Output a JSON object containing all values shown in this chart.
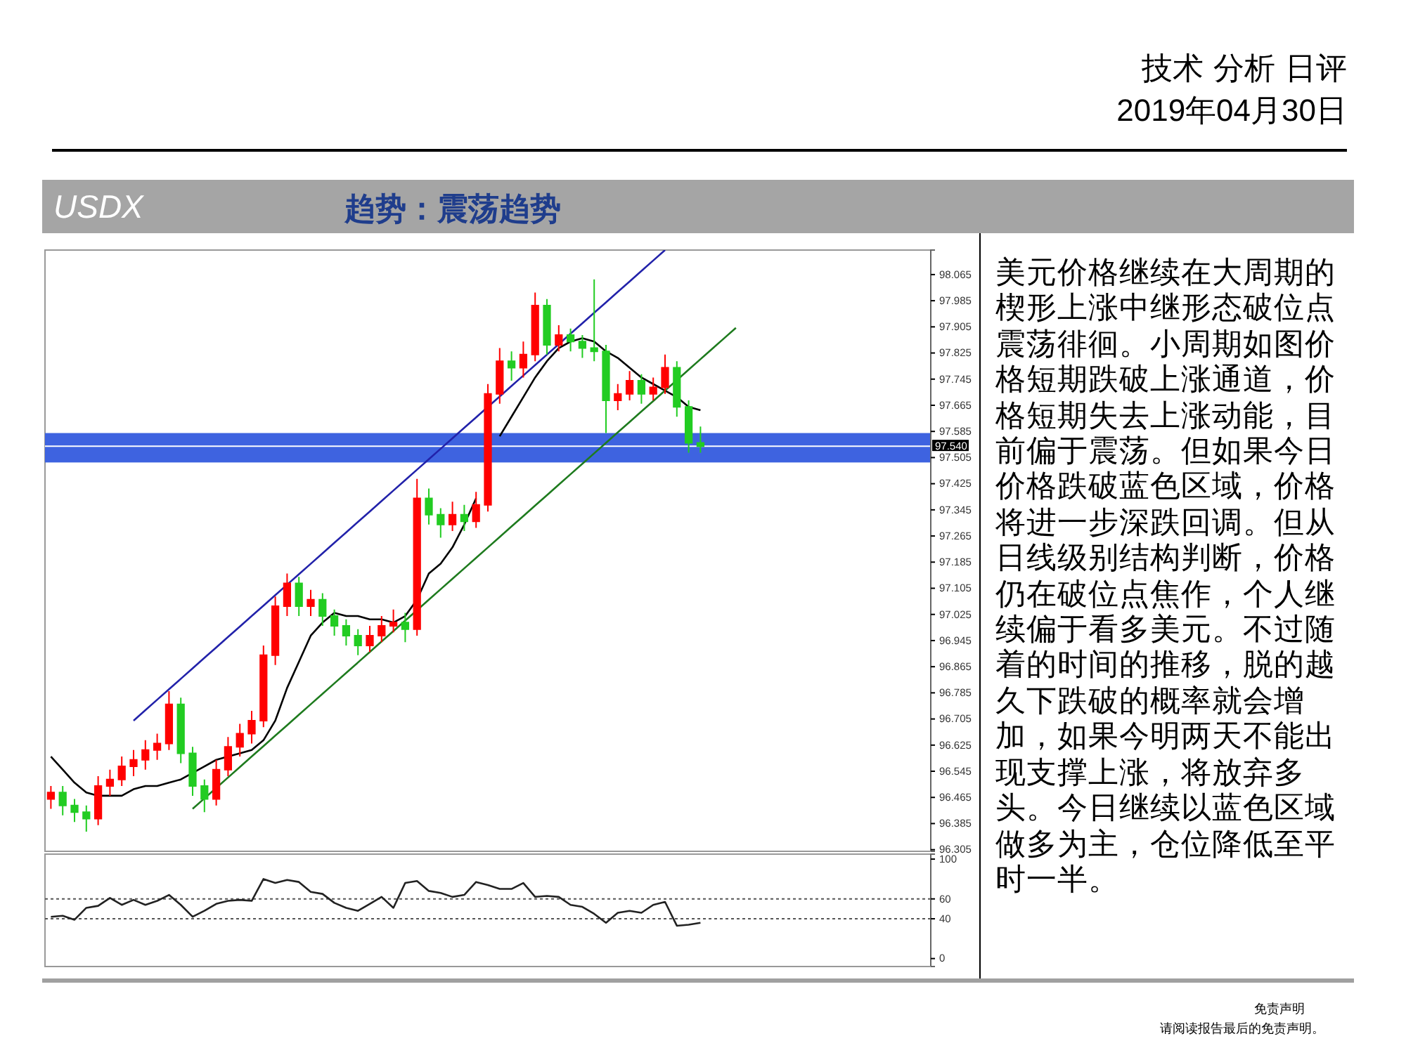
{
  "chart_data": [
    {
      "type": "candlestick",
      "title": "USDX",
      "subtitle": "趋势：震荡趋势",
      "annotations": [
        "技术 分析 日评",
        "2019年04月30日",
        "美元价格继续在大周期的楔形上涨中继形态破位点震荡徘徊。小周期如图价格短期跌破上涨通道，价格短期失去上涨动能，目前偏于震荡。但如果今日价格跌破蓝色区域，价格将进一步深跌回调。但从日线级别结构判断，价格仍在破位点焦作，个人继续偏于看多美元。不过随着的时间的推移，脱的越久下跌破的概率就会增加，如果今明两天不能出现支撑上涨，将放弃多头。今日继续以蓝色区域做多为主，仓位降低至平时一半。",
        "免责声明",
        "请阅读报告最后的免责声明。"
      ],
      "categories": [
        null,
        null,
        null,
        null,
        null,
        null,
        null,
        null,
        null,
        null,
        null,
        null,
        null,
        null,
        null,
        null,
        null,
        null,
        null,
        null,
        null,
        null,
        null,
        null,
        null,
        null,
        null,
        null,
        null,
        null,
        null,
        null,
        null,
        null,
        null,
        null,
        null,
        null,
        null,
        null,
        null,
        null,
        null,
        null,
        null,
        null,
        null,
        null,
        null,
        null,
        null,
        null,
        null,
        null,
        null,
        null,
        null,
        null,
        null,
        null,
        null,
        null,
        null,
        null,
        null,
        null,
        null,
        null,
        null,
        null,
        null,
        null,
        null,
        null,
        null
      ],
      "ohlc": [
        [
          96.46,
          96.5,
          96.43,
          96.48
        ],
        [
          96.48,
          96.5,
          96.41,
          96.44
        ],
        [
          96.44,
          96.46,
          96.39,
          96.42
        ],
        [
          96.42,
          96.44,
          96.36,
          96.4
        ],
        [
          96.4,
          96.53,
          96.38,
          96.5
        ],
        [
          96.5,
          96.55,
          96.47,
          96.52
        ],
        [
          96.52,
          96.59,
          96.5,
          96.56
        ],
        [
          96.56,
          96.61,
          96.53,
          96.58
        ],
        [
          96.58,
          96.64,
          96.55,
          96.61
        ],
        [
          96.61,
          96.66,
          96.58,
          96.63
        ],
        [
          96.63,
          96.79,
          96.61,
          96.75
        ],
        [
          96.75,
          96.77,
          96.57,
          96.6
        ],
        [
          96.6,
          96.62,
          96.47,
          96.5
        ],
        [
          96.5,
          96.52,
          96.42,
          96.46
        ],
        [
          96.46,
          96.58,
          96.44,
          96.55
        ],
        [
          96.55,
          96.65,
          96.53,
          96.62
        ],
        [
          96.62,
          96.69,
          96.59,
          96.66
        ],
        [
          96.66,
          96.73,
          96.63,
          96.7
        ],
        [
          96.7,
          96.93,
          96.68,
          96.9
        ],
        [
          96.9,
          97.08,
          96.87,
          97.05
        ],
        [
          97.05,
          97.15,
          97.02,
          97.12
        ],
        [
          97.12,
          97.14,
          97.02,
          97.05
        ],
        [
          97.05,
          97.1,
          97.02,
          97.07
        ],
        [
          97.07,
          97.09,
          96.99,
          97.02
        ],
        [
          97.02,
          97.04,
          96.96,
          96.99
        ],
        [
          96.99,
          97.01,
          96.93,
          96.96
        ],
        [
          96.96,
          96.98,
          96.9,
          96.93
        ],
        [
          96.93,
          96.99,
          96.91,
          96.96
        ],
        [
          96.96,
          97.02,
          96.94,
          96.99
        ],
        [
          96.99,
          97.04,
          96.97,
          97.0
        ],
        [
          97.0,
          97.03,
          96.94,
          96.98
        ],
        [
          96.98,
          97.44,
          96.96,
          97.38
        ],
        [
          97.38,
          97.41,
          97.3,
          97.33
        ],
        [
          97.33,
          97.35,
          97.26,
          97.3
        ],
        [
          97.3,
          97.37,
          97.28,
          97.33
        ],
        [
          97.33,
          97.36,
          97.28,
          97.31
        ],
        [
          97.31,
          97.4,
          97.29,
          97.36
        ],
        [
          97.36,
          97.73,
          97.34,
          97.7
        ],
        [
          97.7,
          97.84,
          97.67,
          97.8
        ],
        [
          97.8,
          97.83,
          97.74,
          97.78
        ],
        [
          97.78,
          97.86,
          97.75,
          97.82
        ],
        [
          97.82,
          98.01,
          97.8,
          97.97
        ],
        [
          97.97,
          97.99,
          97.82,
          97.85
        ],
        [
          97.85,
          97.91,
          97.83,
          97.88
        ],
        [
          97.88,
          97.9,
          97.83,
          97.86
        ],
        [
          97.86,
          97.88,
          97.81,
          97.84
        ],
        [
          97.84,
          98.05,
          97.8,
          97.83
        ],
        [
          97.83,
          97.85,
          97.58,
          97.68
        ],
        [
          97.68,
          97.73,
          97.65,
          97.7
        ],
        [
          97.7,
          97.77,
          97.68,
          97.74
        ],
        [
          97.74,
          97.76,
          97.67,
          97.7
        ],
        [
          97.7,
          97.75,
          97.68,
          97.72
        ],
        [
          97.72,
          97.82,
          97.7,
          97.78
        ],
        [
          97.78,
          97.8,
          97.63,
          97.66
        ],
        [
          97.66,
          97.68,
          97.52,
          97.55
        ],
        [
          97.55,
          97.6,
          97.52,
          97.54
        ],
        null,
        null,
        null,
        null,
        null,
        null,
        null,
        null,
        null,
        null,
        null,
        null,
        null,
        null,
        null,
        null,
        null,
        null,
        null
      ],
      "colors": [
        "#ff0000",
        "#22cc22",
        "#22cc22",
        "#22cc22",
        "#ff0000",
        "#ff0000",
        "#ff0000",
        "#ff0000",
        "#ff0000",
        "#ff0000",
        "#ff0000",
        "#22cc22",
        "#22cc22",
        "#22cc22",
        "#ff0000",
        "#ff0000",
        "#ff0000",
        "#ff0000",
        "#ff0000",
        "#ff0000",
        "#ff0000",
        "#22cc22",
        "#ff0000",
        "#22cc22",
        "#22cc22",
        "#22cc22",
        "#22cc22",
        "#ff0000",
        "#ff0000",
        "#ff0000",
        "#22cc22",
        "#ff0000",
        "#22cc22",
        "#22cc22",
        "#ff0000",
        "#22cc22",
        "#ff0000",
        "#ff0000",
        "#ff0000",
        "#22cc22",
        "#ff0000",
        "#ff0000",
        "#22cc22",
        "#ff0000",
        "#22cc22",
        "#22cc22",
        "#22cc22",
        "#22cc22",
        "#ff0000",
        "#ff0000",
        "#22cc22",
        "#ff0000",
        "#ff0000",
        "#22cc22",
        "#22cc22",
        "#22cc22",
        null,
        null,
        null,
        null,
        null,
        null,
        null,
        null,
        null,
        null,
        null,
        null,
        null,
        null,
        null,
        null,
        null,
        null,
        null
      ],
      "series": [
        {
          "type": "line",
          "color": "#000000",
          "values": [
            96.59,
            96.55,
            96.51,
            96.48,
            96.47,
            96.47,
            96.47,
            96.49,
            96.5,
            96.5,
            96.51,
            96.52,
            96.54,
            96.56,
            96.58,
            96.59,
            96.6,
            96.61,
            96.64,
            96.7,
            96.8,
            96.88,
            96.96,
            97.0,
            97.03,
            97.02,
            97.02,
            97.01,
            97.01,
            97.0,
            97.02,
            97.07,
            97.15,
            97.18,
            97.23,
            97.3,
            97.38,
            null,
            97.57,
            97.63,
            97.69,
            97.75,
            97.8,
            97.84,
            97.86,
            97.87,
            97.86,
            97.83,
            97.81,
            97.78,
            97.75,
            97.73,
            97.71,
            97.69,
            97.66,
            97.65,
            null,
            null,
            null,
            null,
            null,
            null,
            null,
            null,
            null,
            null,
            null,
            null,
            null,
            null,
            null,
            null,
            null,
            null,
            null
          ]
        },
        {
          "type": "line",
          "color": "#2222aa",
          "values": [
            null,
            null,
            null,
            null,
            null,
            null,
            null,
            96.7,
            96.732,
            96.764,
            96.796,
            96.828,
            96.86,
            96.892,
            96.924,
            96.956,
            96.988,
            97.02,
            97.052,
            97.084,
            97.116,
            97.148,
            97.18,
            97.212,
            97.244,
            97.276,
            97.308,
            97.34,
            97.372,
            97.404,
            97.436,
            97.468,
            97.5,
            97.532,
            97.564,
            97.596,
            97.628,
            97.66,
            97.692,
            97.724,
            97.756,
            97.788,
            97.82,
            97.852,
            97.884,
            97.916,
            97.948,
            97.98,
            98.012,
            98.044,
            98.076,
            98.108,
            98.14,
            null,
            null,
            null,
            null,
            null,
            null,
            null,
            null,
            null,
            null,
            null,
            null,
            null,
            null,
            null,
            null,
            null,
            null,
            null,
            null,
            null,
            null
          ]
        },
        {
          "type": "line",
          "color": "#1e7b1e",
          "values": [
            null,
            null,
            null,
            null,
            null,
            null,
            null,
            null,
            null,
            null,
            null,
            null,
            96.43,
            96.462,
            96.494,
            96.526,
            96.558,
            96.59,
            96.622,
            96.654,
            96.686,
            96.718,
            96.75,
            96.782,
            96.814,
            96.846,
            96.878,
            96.91,
            96.942,
            96.974,
            97.006,
            97.038,
            97.07,
            97.102,
            97.134,
            97.166,
            97.198,
            97.23,
            97.262,
            97.294,
            97.326,
            97.358,
            97.39,
            97.422,
            97.454,
            97.486,
            97.518,
            97.55,
            97.582,
            97.614,
            97.646,
            97.678,
            97.71,
            97.742,
            97.774,
            97.806,
            97.838,
            97.87,
            97.902,
            null,
            null,
            null,
            null,
            null,
            null,
            null,
            null,
            null,
            null,
            null,
            null,
            null,
            null,
            null,
            null
          ]
        }
      ],
      "bands": [
        {
          "axis": "y",
          "from": 97.49,
          "to": 97.58,
          "color": "#3e63e0"
        }
      ],
      "ref_lines": [
        {
          "axis": "y",
          "value": 97.54,
          "label": "97.540",
          "color": "#ffffff"
        }
      ],
      "ylim": [
        96.3,
        98.14
      ],
      "yticks": [
        96.305,
        96.385,
        96.465,
        96.545,
        96.625,
        96.705,
        96.785,
        96.865,
        96.945,
        97.025,
        97.105,
        97.185,
        97.265,
        97.345,
        97.425,
        97.505,
        97.585,
        97.665,
        97.745,
        97.825,
        97.905,
        97.985,
        98.065
      ],
      "tick_labels": "y"
    },
    {
      "type": "line",
      "categories": [
        null,
        null,
        null,
        null,
        null,
        null,
        null,
        null,
        null,
        null,
        null,
        null,
        null,
        null,
        null,
        null,
        null,
        null,
        null,
        null,
        null,
        null,
        null,
        null,
        null,
        null,
        null,
        null,
        null,
        null,
        null,
        null,
        null,
        null,
        null,
        null,
        null,
        null,
        null,
        null,
        null,
        null,
        null,
        null,
        null,
        null,
        null,
        null,
        null,
        null,
        null,
        null,
        null,
        null,
        null,
        null,
        null,
        null,
        null,
        null,
        null,
        null,
        null,
        null,
        null,
        null,
        null,
        null,
        null,
        null,
        null,
        null,
        null,
        null,
        null
      ],
      "series": [
        {
          "color": "#222222",
          "values": [
            42,
            43,
            39,
            51,
            53,
            61,
            54,
            59,
            54,
            58,
            64,
            54,
            42,
            48,
            55,
            58,
            59,
            58,
            80,
            76,
            79,
            77,
            67,
            65,
            56,
            51,
            48,
            55,
            62,
            51,
            76,
            78,
            68,
            66,
            62,
            64,
            77,
            74,
            70,
            70,
            76,
            62,
            63,
            62,
            54,
            52,
            45,
            36,
            46,
            48,
            46,
            54,
            57,
            33,
            34,
            36,
            null,
            null,
            null,
            null,
            null,
            null,
            null,
            null,
            null,
            null,
            null,
            null,
            null,
            null,
            null,
            null,
            null,
            null,
            null
          ]
        }
      ],
      "ref_lines": [
        {
          "axis": "y",
          "value": 60,
          "line_style": "dotted",
          "color": "#555555"
        },
        {
          "axis": "y",
          "value": 40,
          "line_style": "dotted",
          "color": "#555555"
        }
      ],
      "ylim": [
        -8,
        105
      ],
      "yticks": [
        0,
        40,
        60,
        100
      ],
      "tick_labels": "y"
    }
  ]
}
